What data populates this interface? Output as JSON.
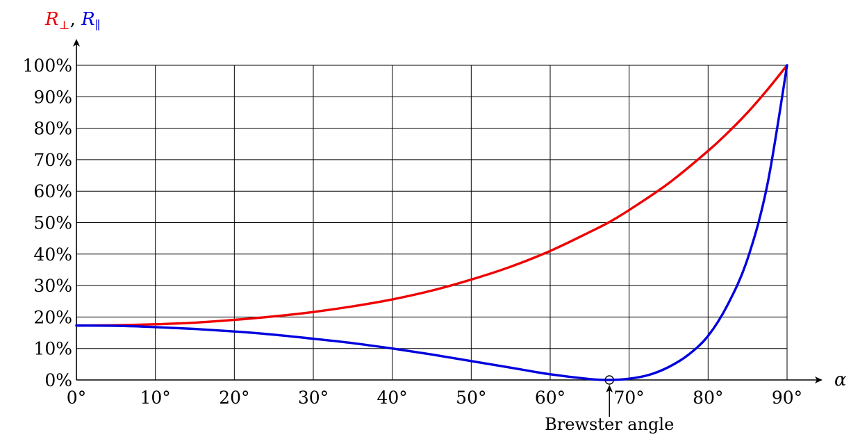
{
  "chart_data": {
    "type": "line",
    "x_axis": {
      "label": "α",
      "range": [
        0,
        90
      ],
      "ticks": [
        0,
        10,
        20,
        30,
        40,
        50,
        60,
        70,
        80,
        90
      ],
      "tick_labels": [
        "0°",
        "10°",
        "20°",
        "30°",
        "40°",
        "50°",
        "60°",
        "70°",
        "80°",
        "90°"
      ]
    },
    "y_axis": {
      "label_parts": [
        {
          "base": "R",
          "sub": "⊥",
          "color": "#ee0000"
        },
        {
          "sep": ", "
        },
        {
          "base": "R",
          "sub": "∥",
          "color": "#0000dd"
        }
      ],
      "range": [
        0,
        100
      ],
      "ticks": [
        0,
        10,
        20,
        30,
        40,
        50,
        60,
        70,
        80,
        90,
        100
      ],
      "tick_labels": [
        "0%",
        "10%",
        "20%",
        "30%",
        "40%",
        "50%",
        "60%",
        "70%",
        "80%",
        "90%",
        "100%"
      ]
    },
    "grid": true,
    "series": [
      {
        "color": "#ee0000",
        "x": [
          0,
          5,
          10,
          15,
          20,
          25,
          30,
          35,
          40,
          45,
          50,
          55,
          60,
          65,
          67.5,
          70,
          75,
          80,
          82.5,
          85,
          87.5,
          90
        ],
        "y": [
          17.3,
          17.4,
          17.7,
          18.2,
          19.1,
          20.2,
          21.6,
          23.4,
          25.6,
          28.4,
          31.9,
          36.0,
          41.0,
          47.0,
          50.2,
          54.0,
          62.5,
          72.8,
          78.6,
          85.0,
          92.2,
          100
        ]
      },
      {
        "color": "#0000dd",
        "x": [
          0,
          5,
          10,
          15,
          20,
          25,
          30,
          35,
          40,
          45,
          50,
          55,
          60,
          65,
          67.5,
          70,
          72.5,
          75,
          77.5,
          80,
          82.5,
          85,
          87.5,
          90
        ],
        "y": [
          17.3,
          17.2,
          16.8,
          16.2,
          15.4,
          14.4,
          13.1,
          11.7,
          10.0,
          8.1,
          6.0,
          3.9,
          1.8,
          0.3,
          0.0,
          0.4,
          1.6,
          4.1,
          8.0,
          14.0,
          24.0,
          38.5,
          62.0,
          100
        ]
      }
    ],
    "annotations": [
      {
        "text": "Brewster angle",
        "x": 67.5,
        "y": 0
      }
    ]
  }
}
